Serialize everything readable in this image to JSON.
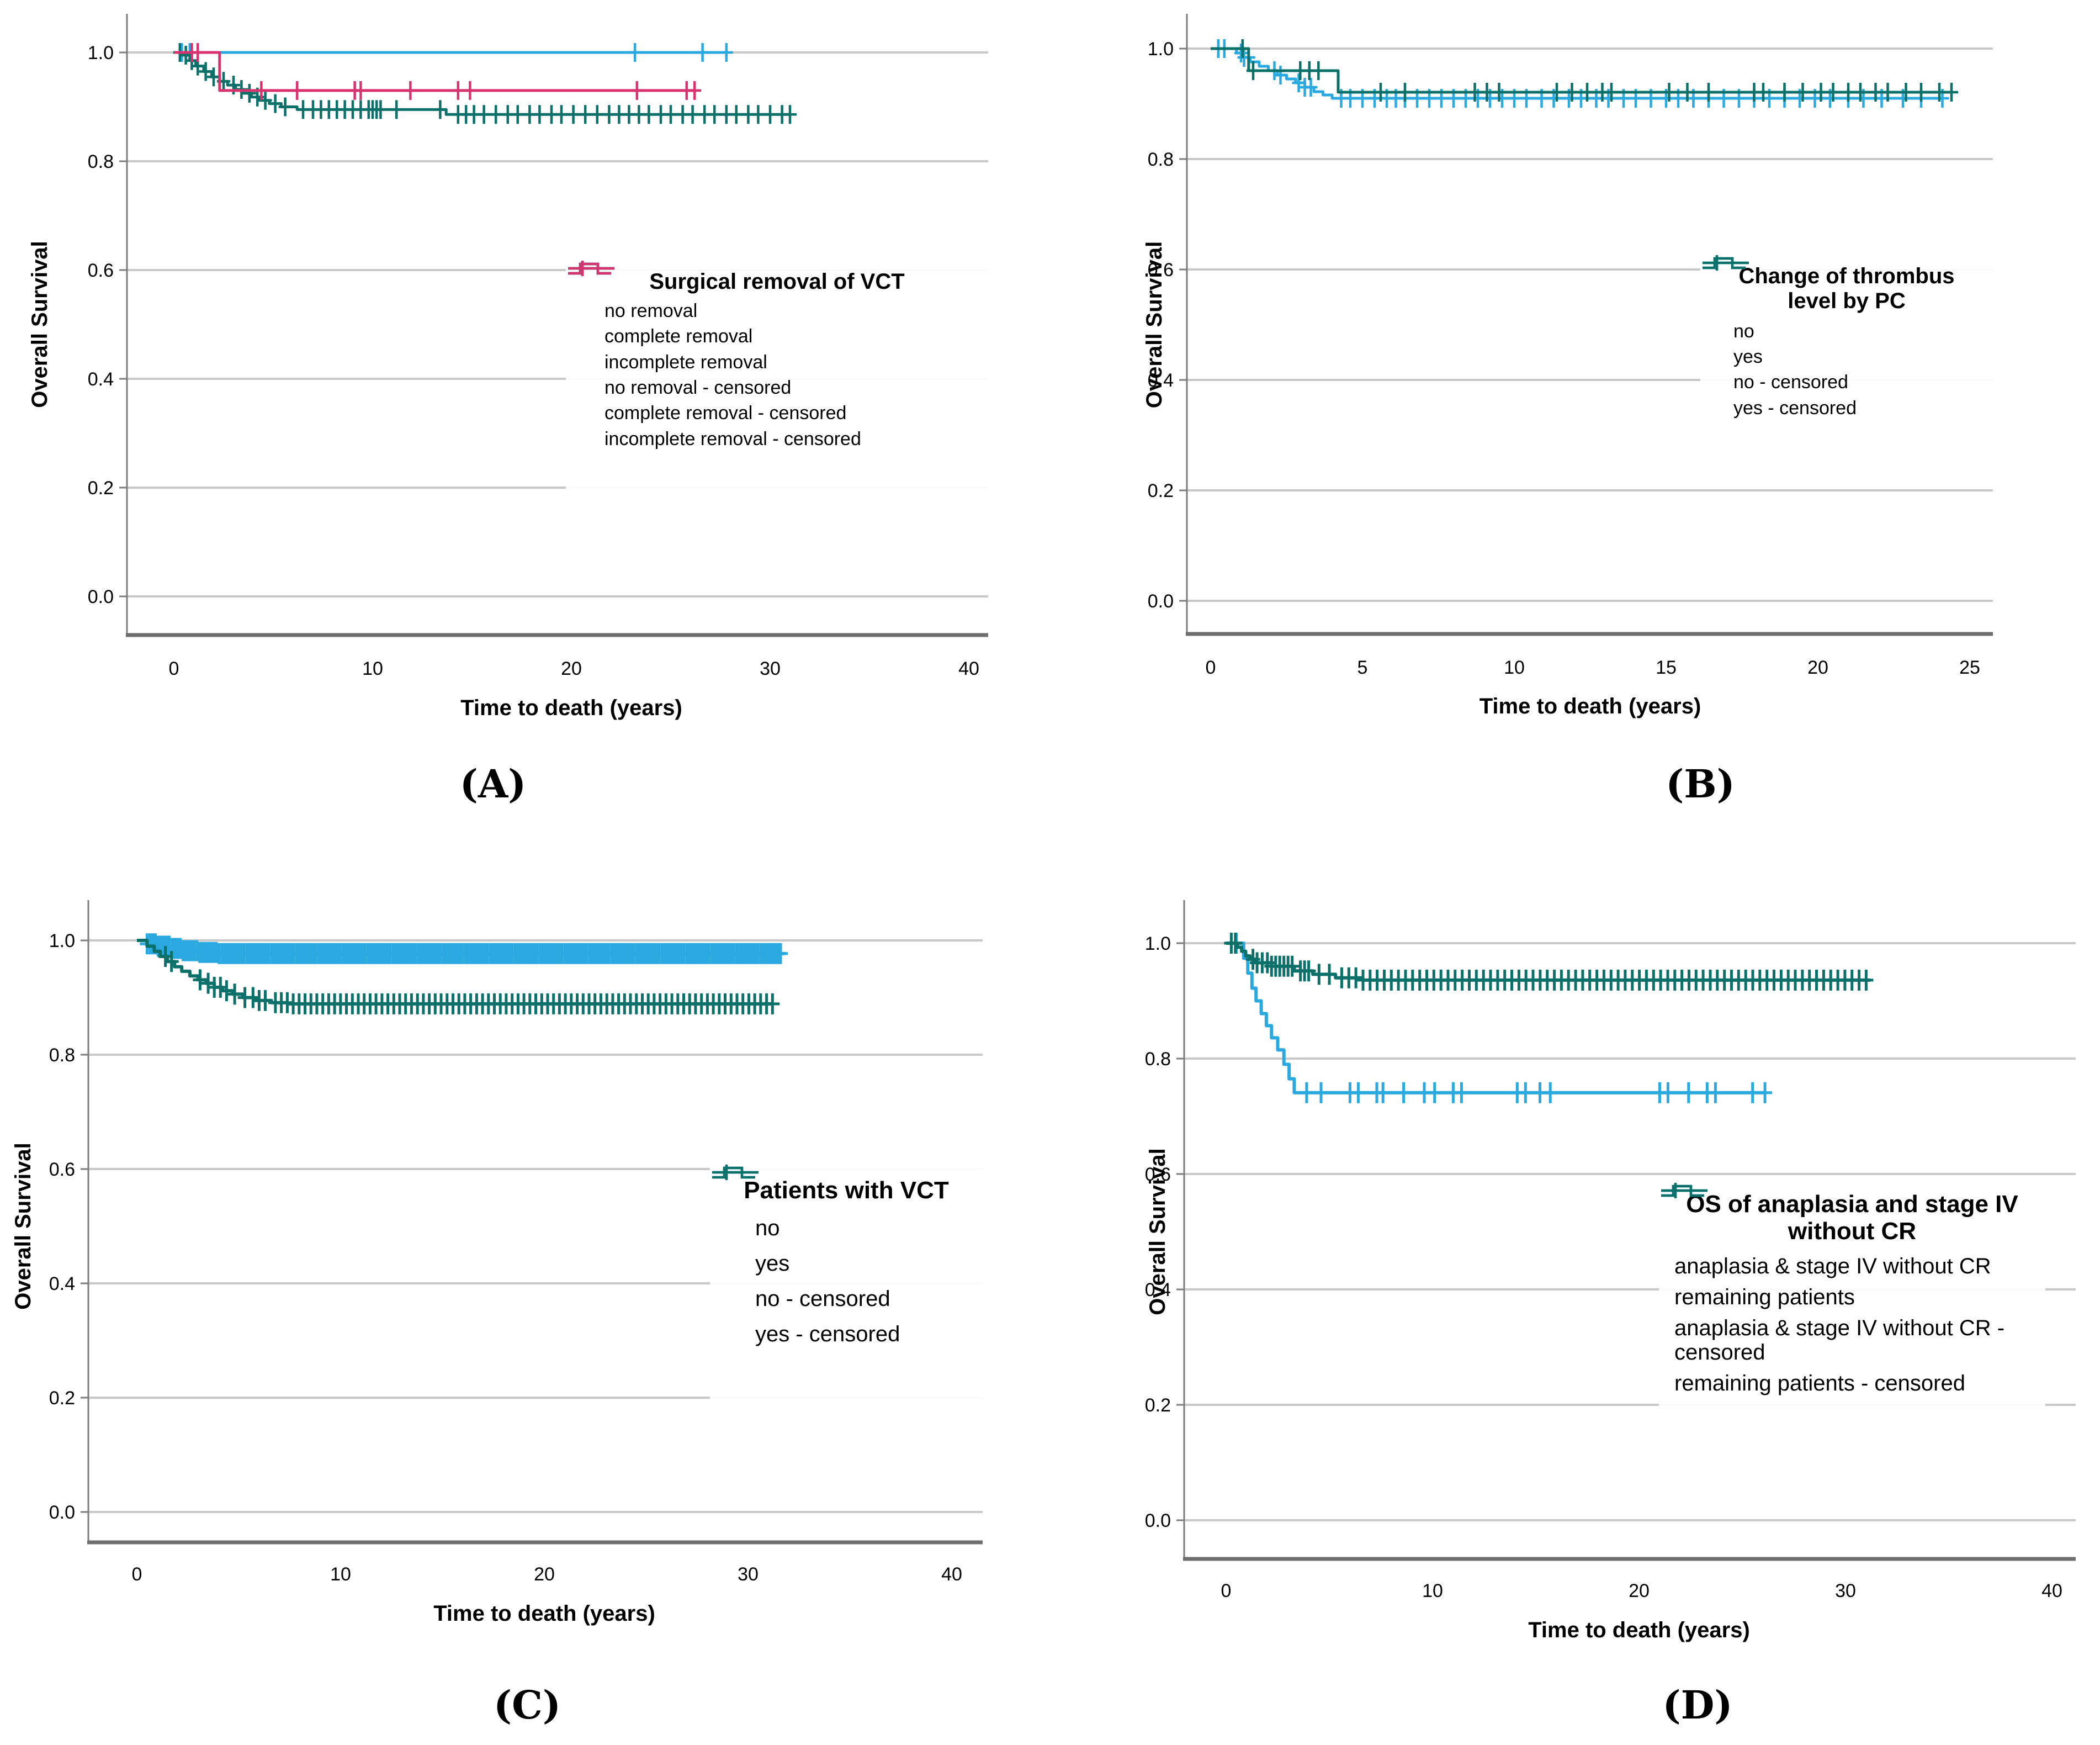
{
  "figure": {
    "xlabel": "Time to death (years)",
    "ylabel": "Overall Survival",
    "colors": {
      "blue": "#29A9E0",
      "teal": "#0B7069",
      "pink": "#D8336F",
      "grid": "#c9c9c9",
      "axis": "#7d7d7d",
      "baseline": "#6e6e6e",
      "text": "#000000"
    }
  },
  "chart_data": [
    {
      "id": "A",
      "type": "line",
      "subtype": "kaplan-meier-step",
      "caption": "(A)",
      "xlabel": "Time to death (years)",
      "ylabel": "Overall Survival",
      "x_ticks": [
        0,
        10,
        20,
        30,
        40
      ],
      "y_ticks": [
        "1.0",
        "0.8",
        "0.6",
        "0.4",
        "0.2",
        "0.0"
      ],
      "xlim": [
        0,
        41
      ],
      "ylim": [
        0.0,
        1.05
      ],
      "grid": "horizontal",
      "legend": {
        "position": "inside-right",
        "title_lines": [
          "Surgical removal of VCT"
        ],
        "items": [
          {
            "label": "no removal",
            "symbol": "step",
            "color": "blue"
          },
          {
            "label": "complete removal",
            "symbol": "step",
            "color": "teal"
          },
          {
            "label": "incomplete removal",
            "symbol": "step",
            "color": "pink"
          },
          {
            "label": "no removal - censored",
            "symbol": "censor",
            "color": "blue"
          },
          {
            "label": "complete removal - censored",
            "symbol": "censor",
            "color": "teal"
          },
          {
            "label": "incomplete removal - censored",
            "symbol": "censor",
            "color": "pink"
          }
        ]
      },
      "series": [
        {
          "name": "no removal",
          "color": "blue",
          "steps": [
            [
              0,
              1.0
            ],
            [
              27.8,
              1.0
            ]
          ],
          "censors": [
            0.4,
            0.8,
            23.2,
            26.6,
            27.8
          ]
        },
        {
          "name": "complete removal",
          "color": "teal",
          "steps": [
            [
              0,
              1.0
            ],
            [
              0.5,
              0.995
            ],
            [
              0.8,
              0.985
            ],
            [
              1.1,
              0.975
            ],
            [
              1.5,
              0.965
            ],
            [
              1.9,
              0.955
            ],
            [
              2.3,
              0.947
            ],
            [
              2.7,
              0.94
            ],
            [
              3.1,
              0.932
            ],
            [
              3.5,
              0.925
            ],
            [
              3.9,
              0.918
            ],
            [
              4.3,
              0.912
            ],
            [
              4.8,
              0.906
            ],
            [
              5.4,
              0.9
            ],
            [
              6.2,
              0.895
            ],
            [
              13.7,
              0.886
            ],
            [
              31,
              0.886
            ]
          ],
          "censors": [
            0.3,
            0.6,
            0.9,
            1.2,
            1.6,
            2,
            2.5,
            3,
            3.4,
            3.8,
            4.2,
            4.6,
            5.1,
            5.6,
            6.5,
            7,
            7.4,
            7.8,
            8.2,
            8.6,
            9,
            9.4,
            9.8,
            10,
            10.2,
            10.4,
            11.2,
            13.4,
            14.3,
            14.7,
            15.1,
            15.6,
            16.2,
            16.8,
            17.3,
            17.9,
            18.4,
            19,
            19.5,
            20.1,
            20.7,
            21.3,
            21.9,
            22.4,
            22.9,
            23.4,
            23.9,
            24.5,
            25,
            25.6,
            26.1,
            26.7,
            27.2,
            27.8,
            28.3,
            28.9,
            29.4,
            30,
            30.6,
            31
          ]
        },
        {
          "name": "incomplete removal",
          "color": "pink",
          "steps": [
            [
              0,
              1.0
            ],
            [
              2.3,
              0.93
            ],
            [
              26.2,
              0.93
            ]
          ],
          "censors": [
            0.9,
            1.2,
            4.4,
            6.2,
            9.1,
            9.4,
            11.9,
            14.3,
            14.9,
            23.3,
            25.8,
            26.2
          ]
        }
      ]
    },
    {
      "id": "B",
      "type": "line",
      "subtype": "kaplan-meier-step",
      "caption": "(B)",
      "xlabel": "Time to death (years)",
      "ylabel": "Overall Survival",
      "x_ticks": [
        0,
        5,
        10,
        15,
        20,
        25
      ],
      "y_ticks": [
        "1.0",
        "0.8",
        "0.6",
        "0.4",
        "0.2",
        "0.0"
      ],
      "xlim": [
        0,
        26
      ],
      "ylim": [
        0.0,
        1.05
      ],
      "grid": "horizontal",
      "legend": {
        "position": "inside-right",
        "title_lines": [
          "Change of thrombus",
          "level by PC"
        ],
        "items": [
          {
            "label": "no",
            "symbol": "step",
            "color": "blue"
          },
          {
            "label": "yes",
            "symbol": "step",
            "color": "teal"
          },
          {
            "label": "no - censored",
            "symbol": "censor",
            "color": "blue"
          },
          {
            "label": "yes - censored",
            "symbol": "censor",
            "color": "teal"
          }
        ]
      },
      "series": [
        {
          "name": "no",
          "color": "blue",
          "steps": [
            [
              0,
              1.0
            ],
            [
              0.85,
              0.992
            ],
            [
              1.05,
              0.984
            ],
            [
              1.3,
              0.976
            ],
            [
              1.6,
              0.968
            ],
            [
              1.9,
              0.96
            ],
            [
              2.2,
              0.952
            ],
            [
              2.5,
              0.945
            ],
            [
              2.8,
              0.938
            ],
            [
              3.1,
              0.93
            ],
            [
              3.4,
              0.922
            ],
            [
              3.7,
              0.916
            ],
            [
              4,
              0.91
            ],
            [
              24.1,
              0.91
            ]
          ],
          "censors": [
            0.25,
            0.45,
            1,
            1.1,
            1.25,
            2.1,
            2.3,
            2.9,
            3.1,
            3.3,
            4.3,
            4.6,
            5,
            5.4,
            5.8,
            6.1,
            6.4,
            6.8,
            7.2,
            7.6,
            8,
            8.4,
            8.8,
            9.2,
            9.6,
            10,
            10.4,
            10.9,
            11.3,
            11.8,
            12.2,
            12.7,
            13.1,
            13.6,
            14,
            14.5,
            15,
            15.4,
            15.9,
            16.4,
            16.9,
            17.4,
            17.9,
            18.4,
            18.9,
            19.4,
            19.9,
            20.4,
            21,
            21.5,
            22.1,
            22.8,
            23.4,
            24.1
          ]
        },
        {
          "name": "yes",
          "color": "teal",
          "steps": [
            [
              0,
              1.0
            ],
            [
              1.25,
              0.96
            ],
            [
              4.2,
              0.921
            ],
            [
              24.4,
              0.921
            ]
          ],
          "censors": [
            1.05,
            1.4,
            2.95,
            3.25,
            3.55,
            5.6,
            6.4,
            8.7,
            9.1,
            9.5,
            11.4,
            11.9,
            12.4,
            12.9,
            13.2,
            15.1,
            15.7,
            16.4,
            17.9,
            18.2,
            18.9,
            19.5,
            20.1,
            20.5,
            21,
            21.4,
            21.9,
            22.3,
            22.9,
            23.4,
            24,
            24.4
          ]
        }
      ]
    },
    {
      "id": "C",
      "type": "line",
      "subtype": "kaplan-meier-step",
      "caption": "(C)",
      "xlabel": "Time to death (years)",
      "ylabel": "Overall Survival",
      "x_ticks": [
        0,
        10,
        20,
        30,
        40
      ],
      "y_ticks": [
        "1.0",
        "0.8",
        "0.6",
        "0.4",
        "0.2",
        "0.0"
      ],
      "xlim": [
        0,
        41
      ],
      "ylim": [
        0.0,
        1.05
      ],
      "grid": "horizontal",
      "legend": {
        "position": "inside-right",
        "title_lines": [
          "Patients with VCT"
        ],
        "items": [
          {
            "label": "no",
            "symbol": "step",
            "color": "blue"
          },
          {
            "label": "yes",
            "symbol": "step",
            "color": "teal"
          },
          {
            "label": "no - censored",
            "symbol": "censor",
            "color": "blue"
          },
          {
            "label": "yes - censored",
            "symbol": "censor",
            "color": "teal"
          }
        ]
      },
      "series": [
        {
          "name": "no",
          "color": "blue",
          "steps": [
            [
              0,
              1.0
            ],
            [
              0.5,
              0.994
            ],
            [
              1,
              0.99
            ],
            [
              1.6,
              0.986
            ],
            [
              2.2,
              0.982
            ],
            [
              3,
              0.979
            ],
            [
              4,
              0.977
            ],
            [
              31.8,
              0.975
            ]
          ],
          "censors": [],
          "censor_band": {
            "from": 0.5,
            "to": 31.6,
            "count": 230
          }
        },
        {
          "name": "yes",
          "color": "teal",
          "steps": [
            [
              0,
              1.0
            ],
            [
              0.5,
              0.99
            ],
            [
              0.85,
              0.981
            ],
            [
              1.15,
              0.972
            ],
            [
              1.5,
              0.963
            ],
            [
              1.85,
              0.954
            ],
            [
              2.2,
              0.946
            ],
            [
              2.6,
              0.938
            ],
            [
              3,
              0.931
            ],
            [
              3.4,
              0.925
            ],
            [
              3.8,
              0.918
            ],
            [
              4.2,
              0.912
            ],
            [
              4.7,
              0.906
            ],
            [
              5.2,
              0.9
            ],
            [
              5.8,
              0.895
            ],
            [
              6.6,
              0.891
            ],
            [
              7.4,
              0.889
            ],
            [
              31.2,
              0.889
            ]
          ],
          "censors": [
            1.4,
            1.7,
            3.1,
            3.5,
            3.8,
            4.1,
            4.4,
            4.8,
            5.3,
            5.7,
            6,
            6.3
          ],
          "censor_band": {
            "from": 6.8,
            "to": 31.2,
            "count": 85
          }
        }
      ]
    },
    {
      "id": "D",
      "type": "line",
      "subtype": "kaplan-meier-step",
      "caption": "(D)",
      "xlabel": "Time to death (years)",
      "ylabel": "Overall Survival",
      "x_ticks": [
        0,
        10,
        20,
        30,
        40
      ],
      "y_ticks": [
        "1.0",
        "0.8",
        "0.6",
        "0.4",
        "0.2",
        "0.0"
      ],
      "xlim": [
        0,
        41
      ],
      "ylim": [
        0.0,
        1.05
      ],
      "grid": "horizontal",
      "legend": {
        "position": "inside-right",
        "title_lines": [
          "OS of anaplasia and stage IV",
          "without CR"
        ],
        "items": [
          {
            "label": "anaplasia & stage IV without CR",
            "symbol": "step",
            "color": "blue"
          },
          {
            "label": "remaining patients",
            "symbol": "step",
            "color": "teal"
          },
          {
            "label": "anaplasia & stage IV without CR - censored",
            "symbol": "censor",
            "color": "blue"
          },
          {
            "label": "remaining patients - censored",
            "symbol": "censor",
            "color": "teal"
          }
        ]
      },
      "series": [
        {
          "name": "anaplasia & stage IV without CR",
          "color": "blue",
          "steps": [
            [
              0,
              1.0
            ],
            [
              0.85,
              0.974
            ],
            [
              1.05,
              0.948
            ],
            [
              1.25,
              0.922
            ],
            [
              1.45,
              0.9
            ],
            [
              1.7,
              0.878
            ],
            [
              1.95,
              0.857
            ],
            [
              2.2,
              0.836
            ],
            [
              2.5,
              0.815
            ],
            [
              2.8,
              0.79
            ],
            [
              3.05,
              0.765
            ],
            [
              3.3,
              0.741
            ],
            [
              26.1,
              0.741
            ]
          ],
          "censors": [
            0.5,
            3.9,
            4.6,
            6,
            6.4,
            7.3,
            7.6,
            8.6,
            9.6,
            10.1,
            11,
            11.4,
            14.1,
            14.5,
            15.2,
            15.7,
            21,
            21.4,
            22.4,
            23.3,
            23.7,
            25.5,
            26.1
          ]
        },
        {
          "name": "remaining patients",
          "color": "teal",
          "steps": [
            [
              0,
              1.0
            ],
            [
              0.55,
              0.993
            ],
            [
              0.75,
              0.986
            ],
            [
              0.95,
              0.978
            ],
            [
              1.15,
              0.972
            ],
            [
              1.45,
              0.966
            ],
            [
              2.2,
              0.96
            ],
            [
              3.3,
              0.952
            ],
            [
              4.2,
              0.946
            ],
            [
              5.3,
              0.94
            ],
            [
              6.6,
              0.936
            ],
            [
              31.2,
              0.936
            ]
          ],
          "censors": [
            0.25,
            0.45,
            1.3,
            1.5,
            1.75,
            2,
            2.2,
            2.4,
            2.6,
            2.8,
            3,
            3.2,
            3.6,
            3.8,
            4,
            4.5,
            5
          ],
          "censor_band": {
            "from": 5.6,
            "to": 31,
            "count": 75
          }
        }
      ]
    }
  ]
}
